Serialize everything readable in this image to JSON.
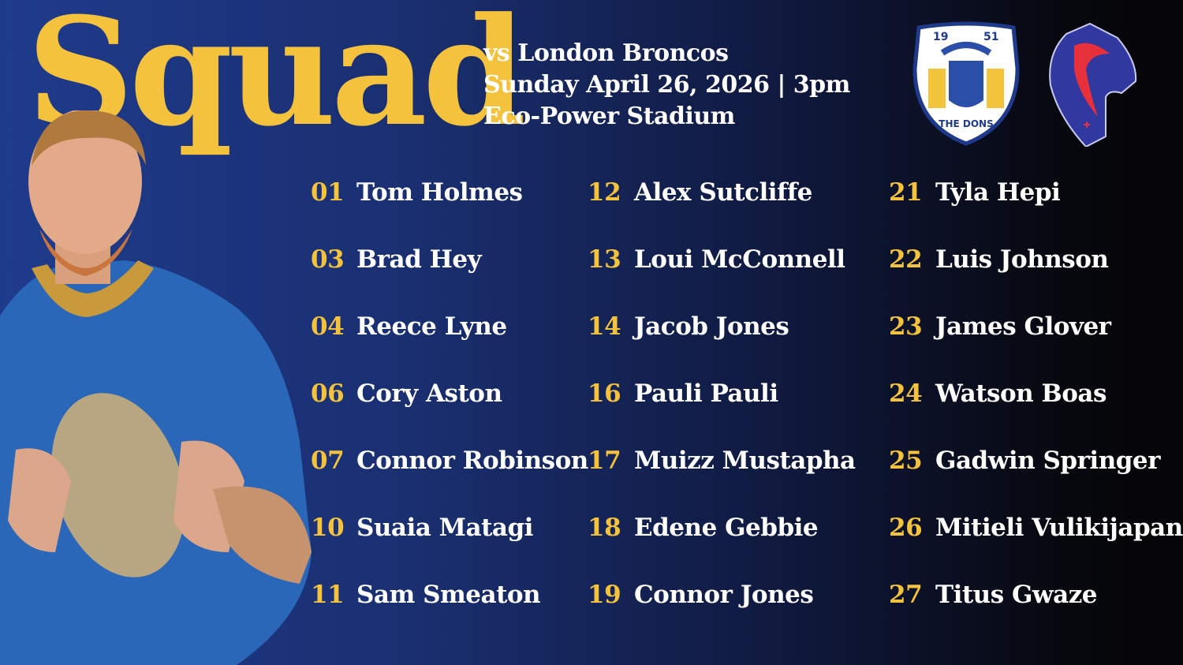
{
  "title": "Squad",
  "fixture": {
    "opponent": "vs London Broncos",
    "date_time": "Sunday April 26, 2026 | 3pm",
    "venue": "Eco-Power Stadium"
  },
  "logos": {
    "home": {
      "year_left": "19",
      "year_right": "51",
      "text": "THE DONS"
    },
    "away": {
      "name": "london-broncos-horse-logo"
    }
  },
  "colors": {
    "accent": "#f4c23c",
    "background_left": "#1f3b8c",
    "background_right": "#050507"
  },
  "squad": [
    [
      {
        "number": "01",
        "name": "Tom Holmes"
      },
      {
        "number": "03",
        "name": "Brad Hey"
      },
      {
        "number": "04",
        "name": "Reece Lyne"
      },
      {
        "number": "06",
        "name": "Cory Aston"
      },
      {
        "number": "07",
        "name": "Connor Robinson"
      },
      {
        "number": "10",
        "name": "Suaia Matagi"
      },
      {
        "number": "11",
        "name": "Sam Smeaton"
      }
    ],
    [
      {
        "number": "12",
        "name": "Alex Sutcliffe"
      },
      {
        "number": "13",
        "name": "Loui McConnell"
      },
      {
        "number": "14",
        "name": "Jacob Jones"
      },
      {
        "number": "16",
        "name": "Pauli Pauli"
      },
      {
        "number": "17",
        "name": "Muizz Mustapha"
      },
      {
        "number": "18",
        "name": "Edene Gebbie"
      },
      {
        "number": "19",
        "name": "Connor Jones"
      }
    ],
    [
      {
        "number": "21",
        "name": "Tyla Hepi"
      },
      {
        "number": "22",
        "name": "Luis Johnson"
      },
      {
        "number": "23",
        "name": "James Glover"
      },
      {
        "number": "24",
        "name": "Watson Boas"
      },
      {
        "number": "25",
        "name": "Gadwin Springer"
      },
      {
        "number": "26",
        "name": "Mitieli Vulikijapani"
      },
      {
        "number": "27",
        "name": "Titus Gwaze"
      }
    ]
  ]
}
